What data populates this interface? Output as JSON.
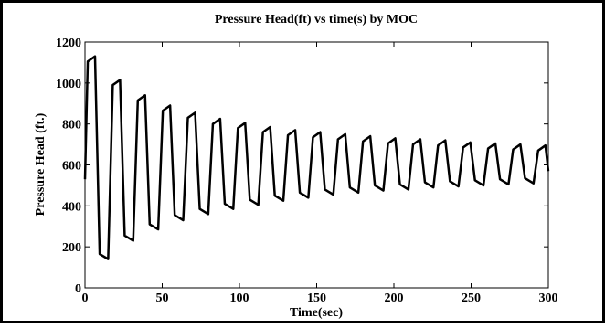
{
  "chart_data": {
    "type": "line",
    "title": "Pressure Head(ft) vs time(s) by MOC",
    "x_label": "Time(sec)",
    "y_label": "Pressure Head (ft.)",
    "x": [
      0,
      1.8,
      6.5,
      9.5,
      15.0,
      18.0,
      22.7,
      25.7,
      31.2,
      34.2,
      38.9,
      41.9,
      47.4,
      50.4,
      55.1,
      58.1,
      63.6,
      66.6,
      71.3,
      74.3,
      79.8,
      82.8,
      87.5,
      90.5,
      96.0,
      99.0,
      103.7,
      106.7,
      112.2,
      115.2,
      119.9,
      122.9,
      128.4,
      131.4,
      136.1,
      139.1,
      144.6,
      147.6,
      152.3,
      155.3,
      160.8,
      163.8,
      168.5,
      171.5,
      177.0,
      180.0,
      184.7,
      187.7,
      193.2,
      196.2,
      200.9,
      203.9,
      209.4,
      212.4,
      217.1,
      220.1,
      225.6,
      228.6,
      233.3,
      236.3,
      241.8,
      244.8,
      249.5,
      252.5,
      258.0,
      261.0,
      265.7,
      268.7,
      274.2,
      277.2,
      281.9,
      284.9,
      290.4,
      293.4,
      298.1,
      300
    ],
    "series": [
      {
        "name": "Pressure Head",
        "color": "#000000",
        "values": [
          530,
          1105,
          1130,
          165,
          140,
          990,
          1015,
          255,
          230,
          915,
          940,
          310,
          285,
          865,
          890,
          355,
          330,
          830,
          855,
          385,
          360,
          800,
          825,
          410,
          385,
          780,
          805,
          430,
          405,
          760,
          785,
          450,
          425,
          745,
          770,
          465,
          440,
          735,
          760,
          480,
          455,
          725,
          750,
          490,
          465,
          715,
          740,
          500,
          475,
          705,
          730,
          505,
          480,
          700,
          725,
          515,
          490,
          695,
          720,
          520,
          495,
          685,
          710,
          525,
          500,
          680,
          705,
          530,
          505,
          675,
          700,
          535,
          510,
          670,
          695,
          570
        ]
      }
    ],
    "xlim": [
      0,
      300
    ],
    "xticks": [
      0,
      50,
      100,
      150,
      200,
      250,
      300
    ],
    "ylim": [
      0,
      1200
    ],
    "yticks": [
      0,
      200,
      400,
      600,
      800,
      1000,
      1200
    ],
    "grid": false
  }
}
